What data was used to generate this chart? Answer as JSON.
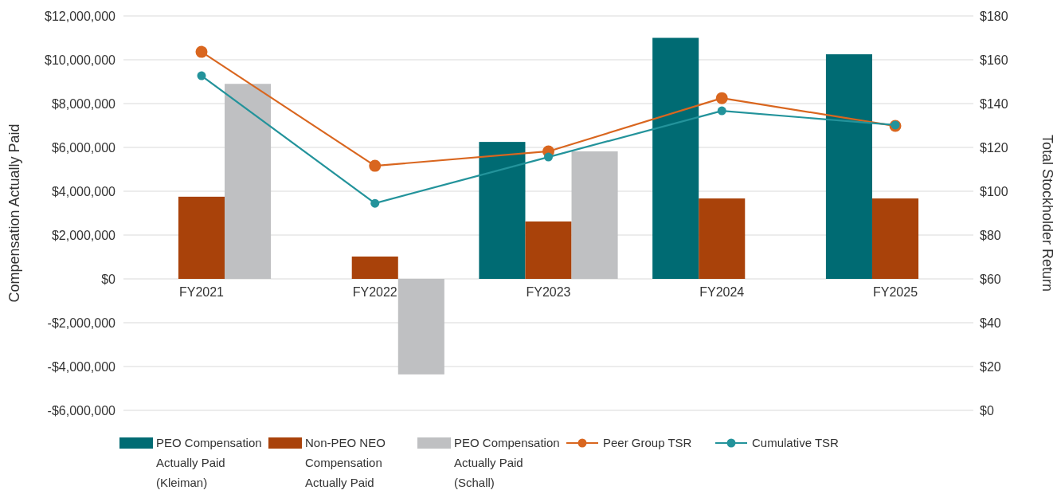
{
  "chart_data": {
    "type": "bar",
    "ylabel": "Compensation Actually Paid",
    "y2label": "Total Stockholder Return",
    "categories": [
      "FY2021",
      "FY2022",
      "FY2023",
      "FY2024",
      "FY2025"
    ],
    "series": [
      {
        "name": "PEO Compensation Actually Paid (Kleiman)",
        "color": "#006b73",
        "values": [
          null,
          null,
          6250000,
          11000000,
          10250000
        ]
      },
      {
        "name": "Non-PEO NEO Compensation Actually Paid",
        "color": "#a9420a",
        "values": [
          3750000,
          1020000,
          2620000,
          3670000,
          3670000
        ]
      },
      {
        "name": "PEO Compensation Actually Paid (Schall)",
        "color": "#bfc0c2",
        "values": [
          8900000,
          -4360000,
          5820000,
          null,
          null
        ]
      },
      {
        "name": "Peer Group TSR",
        "type": "line",
        "axis": "y2",
        "color": "#d9661f",
        "values": [
          163.6,
          111.6,
          118.2,
          142.5,
          129.8
        ]
      },
      {
        "name": "Cumulative TSR",
        "type": "line",
        "axis": "y2",
        "color": "#23939b",
        "values": [
          152.7,
          94.5,
          115.6,
          136.7,
          130.2
        ]
      }
    ],
    "ylim": [
      -6000000,
      12000000
    ],
    "yticks": [
      {
        "value": -6000000,
        "label": "-$6,000,000"
      },
      {
        "value": -4000000,
        "label": "-$4,000,000"
      },
      {
        "value": -2000000,
        "label": "-$2,000,000"
      },
      {
        "value": 0,
        "label": "$0"
      },
      {
        "value": 2000000,
        "label": "$2,000,000"
      },
      {
        "value": 4000000,
        "label": "$4,000,000"
      },
      {
        "value": 6000000,
        "label": "$6,000,000"
      },
      {
        "value": 8000000,
        "label": "$8,000,000"
      },
      {
        "value": 10000000,
        "label": "$10,000,000"
      },
      {
        "value": 12000000,
        "label": "$12,000,000"
      }
    ],
    "y2lim": [
      0,
      180
    ],
    "y2ticks": [
      {
        "value": 0,
        "label": "$0"
      },
      {
        "value": 20,
        "label": "$20"
      },
      {
        "value": 40,
        "label": "$40"
      },
      {
        "value": 60,
        "label": "$60"
      },
      {
        "value": 80,
        "label": "$80"
      },
      {
        "value": 100,
        "label": "$100"
      },
      {
        "value": 120,
        "label": "$120"
      },
      {
        "value": 140,
        "label": "$140"
      },
      {
        "value": 160,
        "label": "$160"
      },
      {
        "value": 180,
        "label": "$180"
      }
    ],
    "grid": "y",
    "legend": "bottom",
    "marker": "circle"
  }
}
